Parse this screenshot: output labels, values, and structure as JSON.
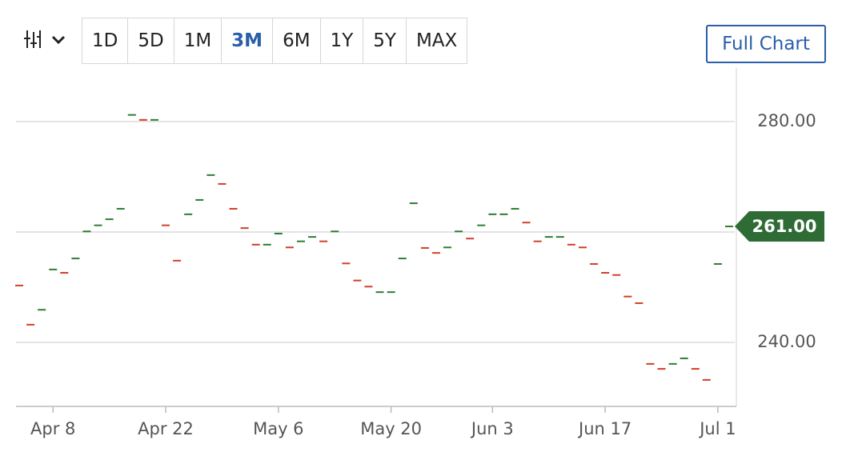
{
  "chart_data": {
    "type": "price-dash",
    "range_buttons": [
      "1D",
      "5D",
      "1M",
      "3M",
      "6M",
      "1Y",
      "5Y",
      "MAX"
    ],
    "selected_range": "3M",
    "full_chart_button": "Full Chart",
    "categories": [
      null,
      null,
      null,
      "Apr 8",
      null,
      null,
      null,
      null,
      null,
      null,
      null,
      null,
      null,
      "Apr 22",
      null,
      null,
      null,
      null,
      null,
      null,
      null,
      null,
      null,
      "May 6",
      null,
      null,
      null,
      null,
      null,
      null,
      null,
      null,
      null,
      "May 20",
      null,
      null,
      null,
      null,
      null,
      null,
      null,
      null,
      "Jun 3",
      null,
      null,
      null,
      null,
      null,
      null,
      null,
      null,
      null,
      "Jun 17",
      null,
      null,
      null,
      null,
      null,
      null,
      null,
      null,
      null,
      "Jul 1",
      null
    ],
    "values": [
      250.3,
      243.2,
      245.9,
      253.2,
      252.6,
      255.2,
      260.1,
      261.2,
      262.3,
      264.2,
      281.2,
      280.3,
      280.3,
      261.2,
      254.8,
      263.2,
      265.8,
      270.3,
      268.7,
      264.2,
      260.7,
      257.7,
      257.7,
      259.7,
      257.2,
      258.3,
      259.1,
      258.3,
      260.1,
      254.3,
      251.2,
      250.1,
      249.1,
      249.1,
      255.2,
      265.2,
      257.1,
      256.2,
      257.2,
      260.1,
      258.8,
      261.2,
      263.2,
      263.2,
      264.2,
      261.7,
      258.3,
      259.1,
      259.1,
      257.7,
      257.2,
      254.2,
      252.6,
      252.2,
      248.3,
      247.1,
      236.1,
      235.2,
      236.1,
      237.1,
      235.2,
      233.2,
      254.2,
      261
    ],
    "point_colors": [
      "#d0402a",
      "#d0402a",
      "#2e7d32",
      "#2e7d32",
      "#d0402a",
      "#2e7d32",
      "#2e7d32",
      "#2e7d32",
      "#2e7d32",
      "#2e7d32",
      "#2e7d32",
      "#d0402a",
      "#2e7d32",
      "#d0402a",
      "#d0402a",
      "#2e7d32",
      "#2e7d32",
      "#2e7d32",
      "#d0402a",
      "#d0402a",
      "#d0402a",
      "#d0402a",
      "#2e7d32",
      "#2e7d32",
      "#d0402a",
      "#2e7d32",
      "#2e7d32",
      "#d0402a",
      "#2e7d32",
      "#d0402a",
      "#d0402a",
      "#d0402a",
      "#2e7d32",
      "#2e7d32",
      "#2e7d32",
      "#2e7d32",
      "#d0402a",
      "#d0402a",
      "#2e7d32",
      "#2e7d32",
      "#d0402a",
      "#2e7d32",
      "#2e7d32",
      "#2e7d32",
      "#2e7d32",
      "#d0402a",
      "#d0402a",
      "#2e7d32",
      "#2e7d32",
      "#d0402a",
      "#d0402a",
      "#d0402a",
      "#d0402a",
      "#d0402a",
      "#d0402a",
      "#d0402a",
      "#d0402a",
      "#d0402a",
      "#2e7d32",
      "#2e7d32",
      "#d0402a",
      "#d0402a",
      "#2e7d32",
      "#2e7d32"
    ],
    "ylim": [
      228.4,
      289.7
    ],
    "gridlines": [
      240,
      260,
      280
    ],
    "yticks": [
      {
        "value": 240,
        "label": "240.00"
      },
      {
        "value": 280,
        "label": "280.00"
      }
    ],
    "last_price": {
      "value": 261,
      "label": "261.00",
      "color": "#2e6b35"
    }
  }
}
